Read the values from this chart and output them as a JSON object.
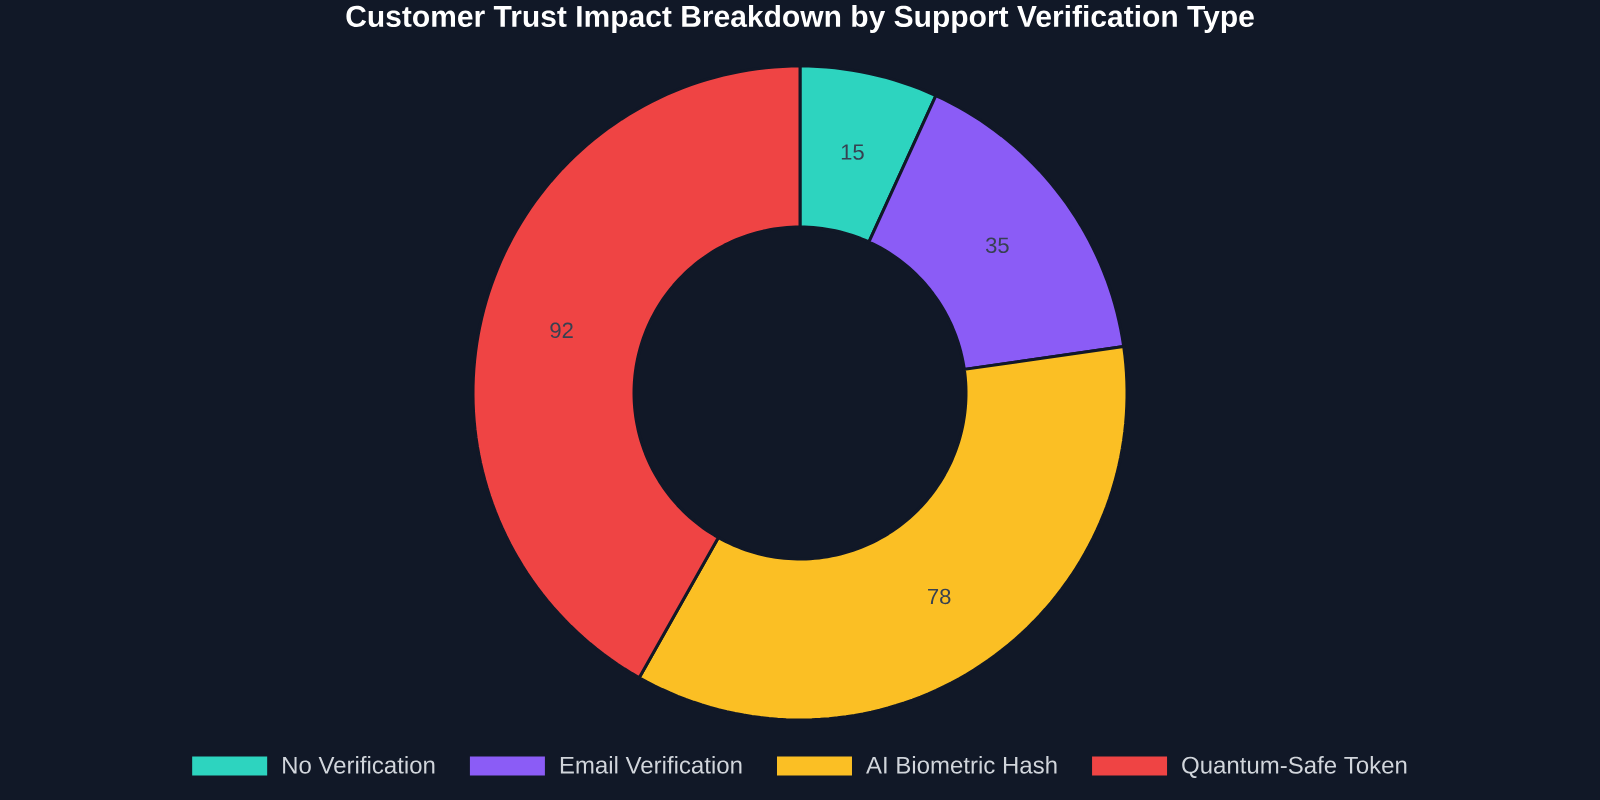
{
  "chart_data": {
    "type": "donut",
    "title": "Customer Trust Impact Breakdown by Support Verification Type",
    "categories": [
      "No Verification",
      "Email Verification",
      "AI Biometric Hash",
      "Quantum-Safe Token"
    ],
    "values": [
      15,
      35,
      78,
      92
    ],
    "colors": [
      "#2dd4bf",
      "#8b5cf6",
      "#fbbf24",
      "#ef4444"
    ],
    "data_labels": true,
    "legend": "bottom"
  }
}
